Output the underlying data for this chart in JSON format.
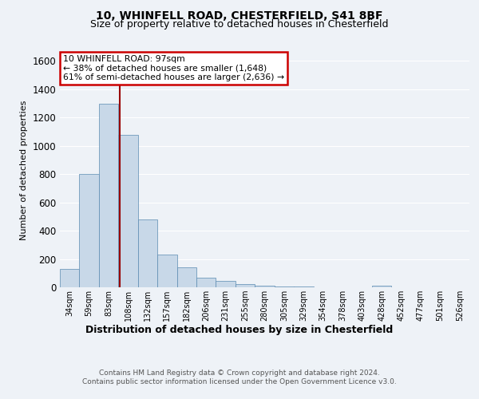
{
  "title_line1": "10, WHINFELL ROAD, CHESTERFIELD, S41 8BF",
  "title_line2": "Size of property relative to detached houses in Chesterfield",
  "xlabel": "Distribution of detached houses by size in Chesterfield",
  "ylabel": "Number of detached properties",
  "categories": [
    "34sqm",
    "59sqm",
    "83sqm",
    "108sqm",
    "132sqm",
    "157sqm",
    "182sqm",
    "206sqm",
    "231sqm",
    "255sqm",
    "280sqm",
    "305sqm",
    "329sqm",
    "354sqm",
    "378sqm",
    "403sqm",
    "428sqm",
    "452sqm",
    "477sqm",
    "501sqm",
    "526sqm"
  ],
  "values": [
    130,
    800,
    1300,
    1080,
    480,
    230,
    140,
    70,
    45,
    20,
    12,
    5,
    3,
    2,
    2,
    2,
    10,
    1,
    1,
    1,
    1
  ],
  "bar_color": "#c8d8e8",
  "bar_edge_color": "#5a8ab0",
  "red_line_x": 2.56,
  "annotation_text": "10 WHINFELL ROAD: 97sqm\n← 38% of detached houses are smaller (1,648)\n61% of semi-detached houses are larger (2,636) →",
  "annotation_box_color": "#ffffff",
  "annotation_box_edge": "#cc0000",
  "red_line_color": "#990000",
  "footer_line1": "Contains HM Land Registry data © Crown copyright and database right 2024.",
  "footer_line2": "Contains public sector information licensed under the Open Government Licence v3.0.",
  "ylim": [
    0,
    1650
  ],
  "background_color": "#eef2f7",
  "grid_color": "#ffffff"
}
